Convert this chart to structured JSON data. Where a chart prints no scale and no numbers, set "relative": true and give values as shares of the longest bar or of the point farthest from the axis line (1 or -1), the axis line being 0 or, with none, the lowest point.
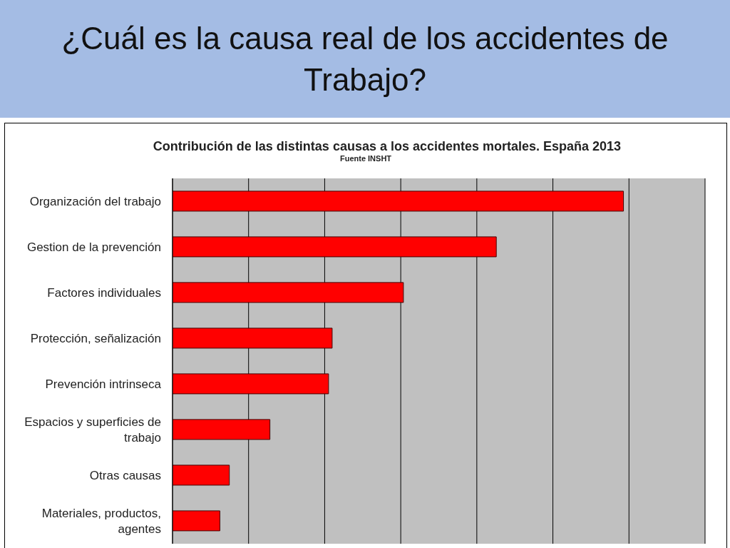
{
  "chart_data": {
    "type": "bar",
    "orientation": "horizontal",
    "relative": true,
    "title": "¿Cuál es la causa real de los accidentes de Trabajo?",
    "subtitle": "Contribución de las distintas causas a los accidentes mortales. España 2013",
    "annotations": [
      "Fuente INSHT"
    ],
    "categories": [
      "Organización del trabajo",
      "Gestion de la prevención",
      "Factores individuales",
      "Protección, señalización",
      "Prevención intrinseca",
      "Espacios y superficies de trabajo",
      "Otras causas",
      "Materiales, productos, agentes"
    ],
    "values": [
      1,
      0.718,
      0.512,
      0.354,
      0.346,
      0.216,
      0.126,
      0.105
    ],
    "color": "#ff0000",
    "grid": "x"
  }
}
